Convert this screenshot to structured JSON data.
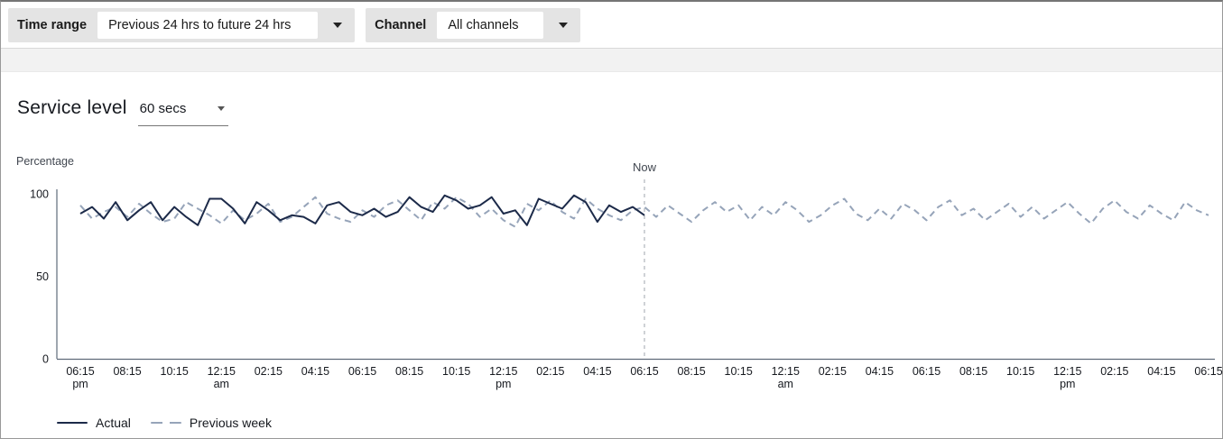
{
  "filters": {
    "time_range": {
      "label": "Time range",
      "value": "Previous 24 hrs to future 24 hrs"
    },
    "channel": {
      "label": "Channel",
      "value": "All channels"
    }
  },
  "panel": {
    "title": "Service level",
    "threshold_value": "60 secs"
  },
  "chart_data": {
    "type": "line",
    "title": "Service level",
    "ylabel": "Percentage",
    "ylim": [
      0,
      100
    ],
    "yticks": [
      0,
      50,
      100
    ],
    "grid": false,
    "legend_position": "bottom-left",
    "now_label": "Now",
    "now_tick_index": 12,
    "x_interval_minutes": 30,
    "x_ticks": [
      {
        "t": "06:15",
        "sub": "pm"
      },
      {
        "t": "08:15",
        "sub": ""
      },
      {
        "t": "10:15",
        "sub": ""
      },
      {
        "t": "12:15",
        "sub": "am"
      },
      {
        "t": "02:15",
        "sub": ""
      },
      {
        "t": "04:15",
        "sub": ""
      },
      {
        "t": "06:15",
        "sub": ""
      },
      {
        "t": "08:15",
        "sub": ""
      },
      {
        "t": "10:15",
        "sub": ""
      },
      {
        "t": "12:15",
        "sub": "pm"
      },
      {
        "t": "02:15",
        "sub": ""
      },
      {
        "t": "04:15",
        "sub": ""
      },
      {
        "t": "06:15",
        "sub": ""
      },
      {
        "t": "08:15",
        "sub": ""
      },
      {
        "t": "10:15",
        "sub": ""
      },
      {
        "t": "12:15",
        "sub": "am"
      },
      {
        "t": "02:15",
        "sub": ""
      },
      {
        "t": "04:15",
        "sub": ""
      },
      {
        "t": "06:15",
        "sub": ""
      },
      {
        "t": "08:15",
        "sub": ""
      },
      {
        "t": "10:15",
        "sub": ""
      },
      {
        "t": "12:15",
        "sub": "pm"
      },
      {
        "t": "02:15",
        "sub": ""
      },
      {
        "t": "04:15",
        "sub": ""
      },
      {
        "t": "06:15",
        "sub": ""
      }
    ],
    "series": [
      {
        "name": "Actual",
        "color": "#1c2a49",
        "dash": "",
        "values": [
          88,
          92,
          85,
          95,
          84,
          90,
          95,
          84,
          92,
          86,
          81,
          97,
          97,
          91,
          82,
          95,
          90,
          84,
          87,
          86,
          82,
          93,
          95,
          89,
          87,
          91,
          86,
          89,
          98,
          92,
          89,
          99,
          96,
          91,
          93,
          98,
          88,
          90,
          81,
          97,
          94,
          91,
          99,
          95,
          83,
          93,
          89,
          92,
          87
        ]
      },
      {
        "name": "Previous week",
        "color": "#96a4b9",
        "dash": "7 5",
        "values": [
          93,
          85,
          89,
          92,
          86,
          94,
          88,
          83,
          85,
          95,
          91,
          87,
          82,
          90,
          84,
          88,
          94,
          83,
          86,
          92,
          98,
          88,
          85,
          83,
          90,
          86,
          93,
          96,
          90,
          84,
          95,
          91,
          98,
          94,
          86,
          91,
          84,
          80,
          94,
          90,
          96,
          89,
          85,
          97,
          91,
          87,
          84,
          90,
          92,
          86,
          93,
          88,
          83,
          90,
          95,
          89,
          93,
          84,
          92,
          87,
          95,
          90,
          83,
          87,
          93,
          97,
          88,
          84,
          91,
          85,
          94,
          90,
          84,
          92,
          96,
          87,
          91,
          84,
          89,
          94,
          86,
          92,
          85,
          90,
          95,
          88,
          82,
          91,
          96,
          89,
          85,
          93,
          88,
          84,
          95,
          90,
          87
        ]
      }
    ],
    "colors": {
      "axis": "#5f6b7a",
      "now_line": "#b5bac0",
      "text_secondary": "#414750"
    }
  }
}
